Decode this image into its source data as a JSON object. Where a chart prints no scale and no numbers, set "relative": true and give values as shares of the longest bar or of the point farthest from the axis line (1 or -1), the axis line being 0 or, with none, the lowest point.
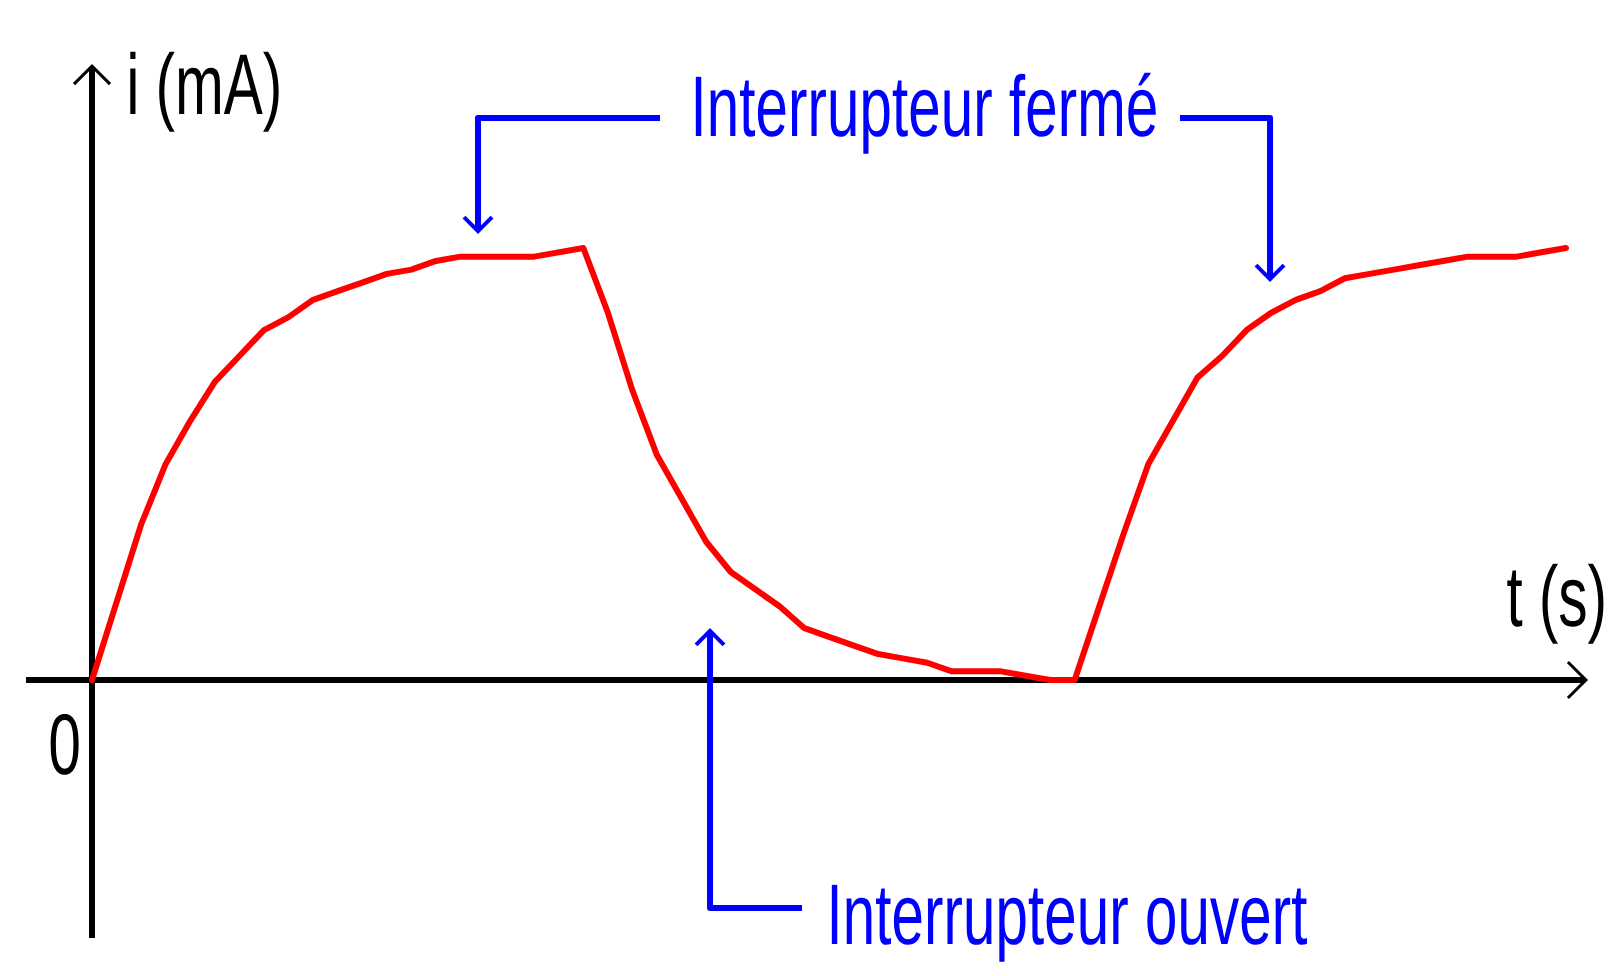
{
  "chart_data": {
    "type": "line",
    "relative": true,
    "xlabel": "t (s)",
    "ylabel": "i (mA)",
    "categories": [
      null,
      null,
      null,
      null,
      null,
      null,
      null,
      null,
      null,
      null,
      null,
      null,
      null,
      null,
      null,
      null,
      null,
      null,
      null,
      null,
      null,
      null,
      null,
      null,
      null,
      null,
      null,
      null,
      null,
      null,
      null,
      null,
      null,
      null,
      null,
      null,
      null,
      null,
      null,
      null,
      null,
      null,
      null,
      null,
      null,
      null,
      null,
      null,
      null,
      null,
      null,
      null,
      null,
      null,
      null,
      null,
      null,
      null,
      null,
      null,
      null
    ],
    "values": [
      0,
      0.18,
      0.36,
      0.5,
      0.6,
      0.69,
      0.75,
      0.81,
      0.84,
      0.88,
      0.9,
      0.92,
      0.94,
      0.95,
      0.97,
      0.98,
      0.98,
      0.98,
      0.98,
      0.99,
      1.0,
      0.85,
      0.67,
      0.52,
      0.42,
      0.32,
      0.25,
      0.21,
      0.17,
      0.12,
      0.1,
      0.08,
      0.06,
      0.05,
      0.04,
      0.02,
      0.02,
      0.02,
      0.01,
      0,
      0,
      0.17,
      0.34,
      0.5,
      0.6,
      0.7,
      0.75,
      0.81,
      0.85,
      0.88,
      0.9,
      0.93,
      0.94,
      0.95,
      0.96,
      0.97,
      0.98,
      0.98,
      0.98,
      0.99,
      1.0
    ],
    "color": "#ff0000",
    "annotations": [
      "Interrupteur fermé",
      "Interrupteur ouvert",
      "0"
    ]
  }
}
